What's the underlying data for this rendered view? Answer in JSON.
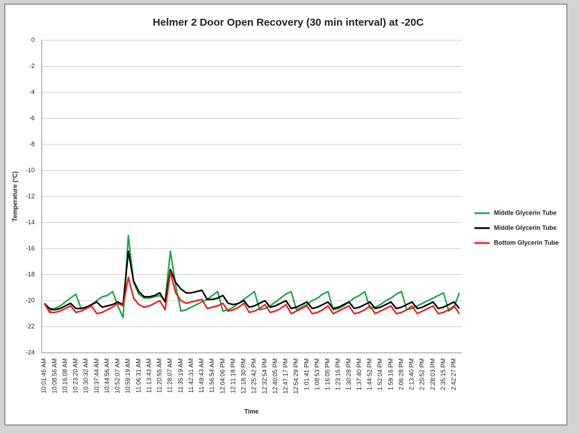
{
  "chart_data": {
    "type": "line",
    "title": "Helmer 2 Door Open Recovery (30 min interval) at -20C",
    "x_label": "Time",
    "y_label": "Temperature (°C)",
    "categories": [
      "10:01:45 AM",
      null,
      "10:08:56 AM",
      null,
      "10:16:08 AM",
      null,
      "10:23:20 AM",
      null,
      "10:30:32 AM",
      null,
      "10:37:44 AM",
      null,
      "10:44:56 AM",
      null,
      "10:52:07 AM",
      null,
      "10:59:19 AM",
      null,
      "11:06:31 AM",
      null,
      "11:13:43 AM",
      null,
      "11:20:55 AM",
      null,
      "11:28:07 AM",
      null,
      "11:35:19 AM",
      null,
      "11:42:31 AM",
      null,
      "11:49:43 AM",
      null,
      "11:56:54 AM",
      null,
      "12:04:06 PM",
      null,
      "12:11:18 PM",
      null,
      "12:18:30 PM",
      null,
      "12:25:42 PM",
      null,
      "12:32:54 PM",
      null,
      "12:40:05 PM",
      null,
      "12:47:17 PM",
      null,
      "12:54:29 PM",
      null,
      "1:01:41 PM",
      null,
      "1:08:53 PM",
      null,
      "1:16:05 PM",
      null,
      "1:23:16 PM",
      null,
      "1:30:28 PM",
      null,
      "1:37:40 PM",
      null,
      "1:44:52 PM",
      null,
      "1:52:04 PM",
      null,
      "1:59:16 PM",
      null,
      "2:06:28 PM",
      null,
      "2:13:40 PM",
      null,
      "2:20:52 PM",
      null,
      "2:28:03 PM",
      null,
      "2:35:15 PM",
      null,
      "2:42:27 PM",
      null
    ],
    "series": [
      {
        "name": "Middle Glycerin Tube",
        "color": "#1aa64a",
        "values": [
          -20.2,
          -20.8,
          -20.6,
          -20.4,
          -20.1,
          -19.8,
          -19.5,
          -20.6,
          -20.5,
          -20.3,
          -20.0,
          -19.7,
          -19.6,
          -19.3,
          -20.4,
          -21.3,
          -15.0,
          -18.6,
          -19.5,
          -19.8,
          -19.8,
          -19.7,
          -19.6,
          -20.0,
          -16.2,
          -18.8,
          -20.8,
          -20.7,
          -20.5,
          -20.3,
          -20.1,
          -19.9,
          -19.6,
          -19.3,
          -20.8,
          -20.7,
          -20.5,
          -20.2,
          -19.9,
          -19.6,
          -19.3,
          -20.7,
          -20.6,
          -20.4,
          -20.1,
          -19.8,
          -19.5,
          -19.3,
          -20.7,
          -20.5,
          -20.3,
          -20.0,
          -19.8,
          -19.5,
          -19.3,
          -20.7,
          -20.6,
          -20.4,
          -20.1,
          -19.8,
          -19.6,
          -19.3,
          -20.6,
          -20.5,
          -20.3,
          -20.0,
          -19.8,
          -19.5,
          -19.3,
          -20.7,
          -20.6,
          -20.4,
          -20.2,
          -20.0,
          -19.8,
          -19.6,
          -19.4,
          -20.8,
          -20.5,
          -19.4
        ]
      },
      {
        "name": "Middle Glycerin Tube",
        "color": "#000000",
        "values": [
          -20.2,
          -20.6,
          -20.7,
          -20.6,
          -20.4,
          -20.2,
          -20.6,
          -20.6,
          -20.5,
          -20.3,
          -20.1,
          -20.5,
          -20.4,
          -20.3,
          -20.1,
          -20.3,
          -16.2,
          -18.5,
          -19.3,
          -19.7,
          -19.7,
          -19.6,
          -19.4,
          -20.1,
          -17.6,
          -18.6,
          -19.1,
          -19.4,
          -19.4,
          -19.3,
          -19.2,
          -19.9,
          -19.9,
          -19.8,
          -19.6,
          -20.2,
          -20.3,
          -20.2,
          -20.0,
          -20.5,
          -20.4,
          -20.2,
          -20.0,
          -20.5,
          -20.4,
          -20.2,
          -20.0,
          -20.6,
          -20.5,
          -20.3,
          -20.1,
          -20.6,
          -20.5,
          -20.3,
          -20.1,
          -20.6,
          -20.5,
          -20.3,
          -20.1,
          -20.6,
          -20.5,
          -20.3,
          -20.1,
          -20.6,
          -20.5,
          -20.3,
          -20.1,
          -20.6,
          -20.5,
          -20.3,
          -20.1,
          -20.6,
          -20.5,
          -20.3,
          -20.1,
          -20.6,
          -20.5,
          -20.3,
          -20.1,
          -20.6
        ]
      },
      {
        "name": "Bottom Glycerin Tube",
        "color": "#ee1c1c",
        "values": [
          -20.2,
          -20.9,
          -20.9,
          -20.8,
          -20.6,
          -20.4,
          -20.9,
          -20.8,
          -20.6,
          -20.4,
          -21.0,
          -20.9,
          -20.7,
          -20.5,
          -20.2,
          -20.4,
          -18.2,
          -19.8,
          -20.3,
          -20.5,
          -20.4,
          -20.2,
          -20.0,
          -20.7,
          -17.8,
          -19.4,
          -20.0,
          -20.2,
          -20.1,
          -20.0,
          -19.9,
          -20.6,
          -20.5,
          -20.4,
          -20.2,
          -20.8,
          -20.7,
          -20.5,
          -20.2,
          -20.9,
          -20.8,
          -20.6,
          -20.3,
          -20.9,
          -20.8,
          -20.6,
          -20.3,
          -21.0,
          -20.8,
          -20.6,
          -20.4,
          -21.0,
          -20.9,
          -20.7,
          -20.4,
          -21.0,
          -20.8,
          -20.6,
          -20.4,
          -21.0,
          -20.9,
          -20.7,
          -20.4,
          -21.0,
          -20.8,
          -20.6,
          -20.4,
          -21.0,
          -20.9,
          -20.7,
          -20.4,
          -21.0,
          -20.8,
          -20.6,
          -20.4,
          -21.0,
          -20.9,
          -20.7,
          -20.4,
          -21.0
        ]
      }
    ],
    "ylim": [
      -24,
      0
    ],
    "yticks": [
      0,
      -2,
      -4,
      -6,
      -8,
      -10,
      -12,
      -14,
      -16,
      -18,
      -20,
      -22,
      -24
    ],
    "grid": true,
    "legend": "right"
  }
}
